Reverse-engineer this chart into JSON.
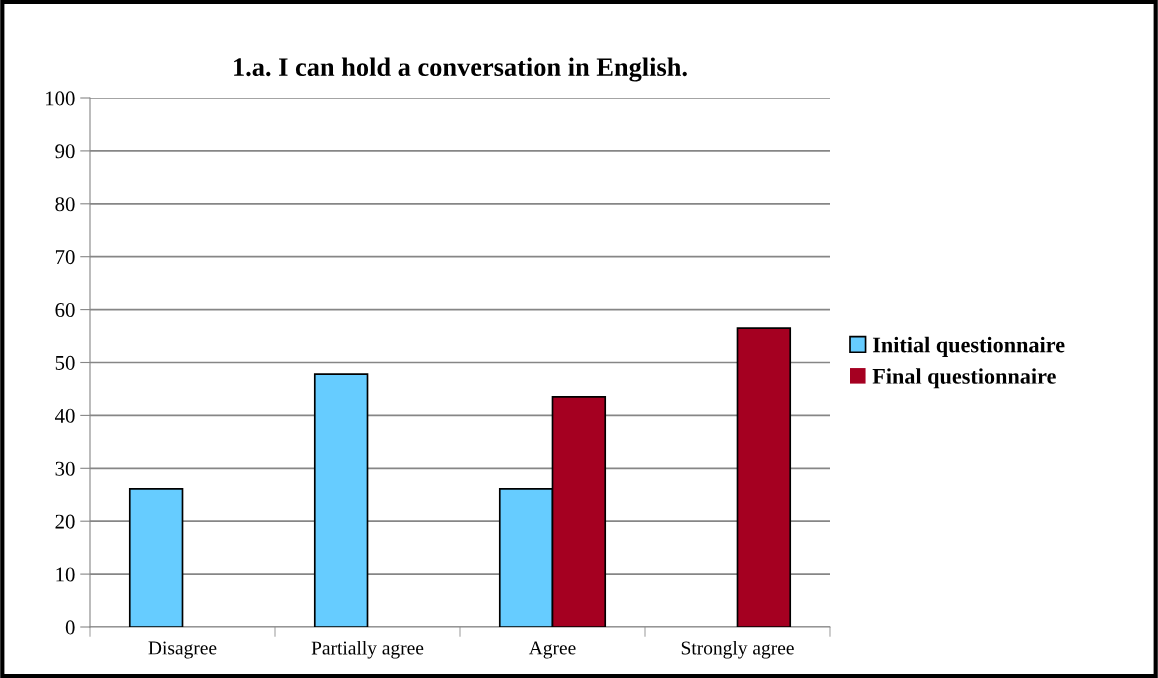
{
  "chart_data": {
    "type": "bar",
    "title": "1.a. I can hold a conversation in English.",
    "categories": [
      "Disagree",
      "Partially agree",
      "Agree",
      "Strongly agree"
    ],
    "series": [
      {
        "name": "Initial questionnaire",
        "color": "#66ccff",
        "values": [
          26.1,
          47.8,
          26.1,
          0
        ]
      },
      {
        "name": "Final questionnaire",
        "color": "#a50021",
        "values": [
          0,
          0,
          43.5,
          56.5
        ]
      }
    ],
    "ylim": [
      0,
      100
    ],
    "yticks": [
      0,
      10,
      20,
      30,
      40,
      50,
      60,
      70,
      80,
      90,
      100
    ],
    "grid": "y",
    "legend": "right"
  }
}
